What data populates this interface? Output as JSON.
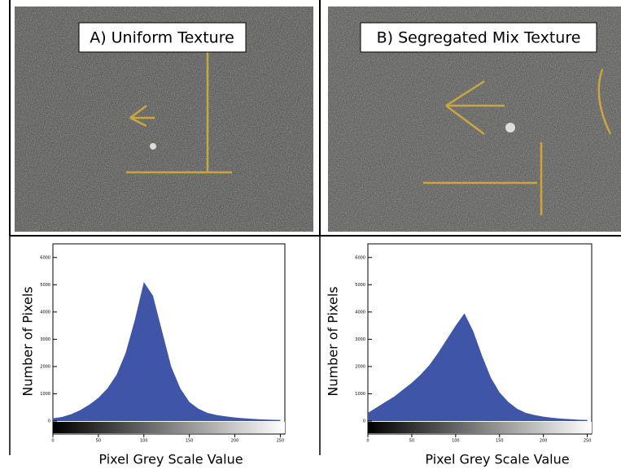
{
  "photos": [
    {
      "label": "A) Uniform Texture"
    },
    {
      "label": "B) Segregated Mix Texture"
    }
  ],
  "chart_data": [
    {
      "type": "area",
      "xlabel": "Pixel Grey Scale Value",
      "ylabel": "Number of Pixels",
      "color": "#3f55a8",
      "x": [
        0,
        10,
        20,
        30,
        40,
        50,
        60,
        70,
        80,
        90,
        100,
        110,
        120,
        130,
        140,
        150,
        160,
        170,
        180,
        190,
        200,
        210,
        220,
        230,
        240,
        250
      ],
      "values": [
        100,
        150,
        250,
        400,
        600,
        850,
        1200,
        1700,
        2500,
        3700,
        5100,
        4600,
        3300,
        2000,
        1200,
        700,
        450,
        300,
        220,
        170,
        130,
        100,
        80,
        60,
        50,
        40
      ],
      "xlim": [
        0,
        255
      ],
      "xticks": [
        0,
        50,
        100,
        150,
        200,
        250
      ],
      "ylim": [
        0,
        6500
      ],
      "yticks": [
        0,
        1000,
        2000,
        3000,
        4000,
        5000,
        6000
      ]
    },
    {
      "type": "area",
      "xlabel": "Pixel Grey Scale Value",
      "ylabel": "Number of Pixels",
      "color": "#3f55a8",
      "x": [
        0,
        10,
        20,
        30,
        40,
        50,
        60,
        70,
        80,
        90,
        100,
        110,
        120,
        130,
        140,
        150,
        160,
        170,
        180,
        190,
        200,
        210,
        220,
        230,
        240,
        250
      ],
      "values": [
        300,
        500,
        700,
        900,
        1150,
        1400,
        1700,
        2050,
        2500,
        3000,
        3500,
        3950,
        3300,
        2400,
        1600,
        1050,
        700,
        450,
        300,
        220,
        160,
        120,
        90,
        70,
        50,
        40
      ],
      "xlim": [
        0,
        255
      ],
      "xticks": [
        0,
        50,
        100,
        150,
        200,
        250
      ],
      "ylim": [
        0,
        6500
      ],
      "yticks": [
        0,
        1000,
        2000,
        3000,
        4000,
        5000,
        6000
      ]
    }
  ]
}
